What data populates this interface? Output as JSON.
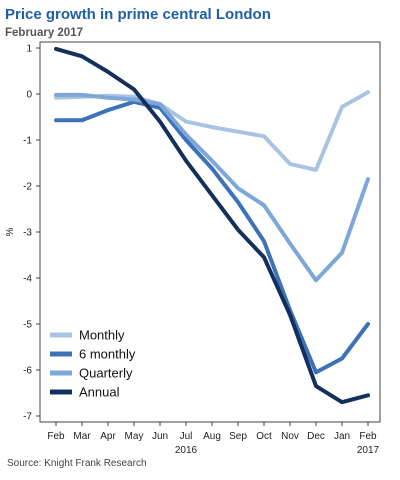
{
  "title": "Price growth in prime central London",
  "subtitle": "February 2017",
  "source": "Source: Knight Frank Research",
  "chart_data": {
    "type": "line",
    "categories": [
      "Feb",
      "Mar",
      "Apr",
      "May",
      "Jun",
      "Jul",
      "Aug",
      "Sep",
      "Oct",
      "Nov",
      "Dec",
      "Jan",
      "Feb"
    ],
    "year_labels": [
      {
        "index": 5,
        "label": "2016"
      },
      {
        "index": 12,
        "label": "2017"
      }
    ],
    "ylabel": "%",
    "ylim": [
      -7,
      1
    ],
    "yticks": [
      1,
      0,
      -1,
      -2,
      -3,
      -4,
      -5,
      -6,
      -7
    ],
    "grid": false,
    "legend_position": "bottom-left",
    "series": [
      {
        "name": "Monthly",
        "color": "#a9c3e3",
        "values": [
          -0.08,
          -0.06,
          -0.04,
          -0.06,
          -0.22,
          -0.6,
          -0.72,
          -0.82,
          -0.92,
          -1.52,
          -1.65,
          -0.28,
          0.04
        ]
      },
      {
        "name": "6 monthly",
        "color": "#3d72b8",
        "values": [
          -0.57,
          -0.57,
          -0.35,
          -0.17,
          -0.3,
          -1.0,
          -1.62,
          -2.35,
          -3.2,
          -4.7,
          -6.05,
          -5.75,
          -5.0
        ]
      },
      {
        "name": "Quarterly",
        "color": "#7ea6d8",
        "values": [
          -0.02,
          -0.02,
          -0.08,
          -0.12,
          -0.22,
          -0.88,
          -1.45,
          -2.05,
          -2.42,
          -3.25,
          -4.05,
          -3.45,
          -1.85
        ]
      },
      {
        "name": "Annual",
        "color": "#13305c",
        "values": [
          0.98,
          0.82,
          0.48,
          0.1,
          -0.6,
          -1.45,
          -2.2,
          -2.95,
          -3.55,
          -4.8,
          -6.35,
          -6.7,
          -6.55
        ]
      }
    ]
  }
}
